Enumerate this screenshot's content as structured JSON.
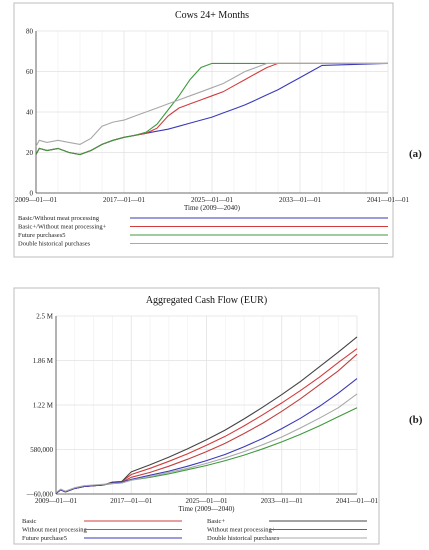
{
  "chart_data": [
    {
      "type": "line",
      "panel_label": "(a)",
      "title": "Cows 24+ Months",
      "xlabel": "Time (2009—2040)",
      "ylabel": "",
      "xlim": [
        2009,
        2041
      ],
      "ylim": [
        0,
        80
      ],
      "x_ticks": [
        "2009—01—01",
        "2017—01—01",
        "2025—01—01",
        "2033—01—01",
        "2041—01—01"
      ],
      "y_ticks": [
        "0",
        "20",
        "40",
        "60",
        "80"
      ],
      "grid": true,
      "legend_position": "bottom",
      "series": [
        {
          "name": "Basic/Without meat processing",
          "color": "#3a3ab8",
          "x": [
            2009,
            2009.3,
            2010,
            2011,
            2012,
            2013,
            2014,
            2015,
            2016,
            2017,
            2018,
            2019,
            2020,
            2021,
            2022,
            2023,
            2024,
            2025,
            2026,
            2027,
            2028,
            2029,
            2030,
            2031,
            2032,
            2033,
            2034,
            2035,
            2041
          ],
          "y": [
            19,
            22,
            21,
            22,
            20,
            19,
            21,
            24,
            26,
            27.5,
            28.5,
            29.5,
            30.5,
            31.5,
            33,
            34.5,
            36,
            37.5,
            39.5,
            41.5,
            43.5,
            46,
            48.5,
            51,
            54,
            57,
            60,
            63,
            64
          ]
        },
        {
          "name": "Basic+/Without meat processing+",
          "color": "#d23c3c",
          "x": [
            2009,
            2009.3,
            2010,
            2011,
            2012,
            2013,
            2014,
            2015,
            2016,
            2017,
            2018,
            2019,
            2020,
            2021,
            2021.5,
            2022,
            2023,
            2024,
            2025,
            2026,
            2027,
            2028,
            2029,
            2030,
            2031,
            2041
          ],
          "y": [
            19,
            22,
            21,
            22,
            20,
            19,
            21,
            24,
            26,
            27.5,
            28.5,
            29.5,
            32,
            38,
            40,
            42,
            44,
            46,
            48,
            50,
            53,
            56,
            59,
            62,
            64,
            64
          ]
        },
        {
          "name": "Future purchases5",
          "color": "#3d9a3d",
          "x": [
            2009,
            2009.3,
            2010,
            2011,
            2012,
            2013,
            2014,
            2015,
            2016,
            2017,
            2018,
            2019,
            2020,
            2021,
            2022,
            2023,
            2024,
            2025,
            2026,
            2041
          ],
          "y": [
            19,
            22,
            21,
            22,
            20,
            19,
            21,
            24,
            26,
            27.5,
            28.5,
            30,
            34,
            41,
            48,
            56,
            62,
            64,
            64,
            64
          ]
        },
        {
          "name": "Double historical purchases",
          "color": "#a8a8a8",
          "x": [
            2009,
            2009.3,
            2010,
            2011,
            2012,
            2013,
            2014,
            2015,
            2016,
            2017,
            2018,
            2019,
            2020,
            2021,
            2022,
            2023,
            2024,
            2025,
            2026,
            2027,
            2028,
            2029,
            2030,
            2031,
            2041
          ],
          "y": [
            23,
            26,
            25,
            26,
            25,
            24,
            27,
            33,
            35,
            36,
            38,
            40,
            42,
            44,
            46,
            48,
            50,
            52,
            54,
            57,
            60,
            62,
            64,
            64,
            64
          ]
        }
      ]
    },
    {
      "type": "line",
      "panel_label": "(b)",
      "title": "Aggregated Cash Flow (EUR)",
      "xlabel": "Time (2009—2040)",
      "ylabel": "",
      "xlim": [
        2009,
        2041
      ],
      "ylim": [
        -60000,
        2500000
      ],
      "x_ticks": [
        "2009—01—01",
        "2017—01—01",
        "2025—01—01",
        "2033—01—01",
        "2041—01—01"
      ],
      "y_ticks": [
        "—60,000",
        "580,000",
        "1.22 M",
        "1.86 M",
        "2.5 M"
      ],
      "grid": true,
      "legend_position": "bottom",
      "series": [
        {
          "name": "Basic",
          "color": "#d23c3c",
          "x": [
            2009,
            2009.5,
            2010,
            2011,
            2012,
            2013,
            2014,
            2015,
            2016,
            2017,
            2019,
            2021,
            2023,
            2025,
            2027,
            2029,
            2031,
            2033,
            2035,
            2037,
            2039,
            2041
          ],
          "y": [
            -50000,
            0,
            -30000,
            20000,
            50000,
            60000,
            70000,
            110000,
            120000,
            220000,
            310000,
            410000,
            520000,
            640000,
            770000,
            920000,
            1080000,
            1250000,
            1430000,
            1620000,
            1830000,
            2030000
          ]
        },
        {
          "name": "Basic+",
          "color": "#444444",
          "x": [
            2009,
            2009.5,
            2010,
            2011,
            2012,
            2013,
            2014,
            2015,
            2016,
            2017,
            2019,
            2021,
            2023,
            2025,
            2027,
            2029,
            2031,
            2033,
            2035,
            2037,
            2039,
            2041
          ],
          "y": [
            -50000,
            0,
            -30000,
            20000,
            50000,
            60000,
            70000,
            110000,
            120000,
            260000,
            360000,
            470000,
            590000,
            720000,
            860000,
            1020000,
            1190000,
            1370000,
            1560000,
            1770000,
            1980000,
            2200000
          ]
        },
        {
          "name": "Without meat processing",
          "color": "#3d9a3d",
          "x": [
            2009,
            2009.5,
            2010,
            2011,
            2012,
            2013,
            2014,
            2015,
            2016,
            2017,
            2019,
            2021,
            2023,
            2025,
            2027,
            2029,
            2031,
            2033,
            2035,
            2037,
            2039,
            2041
          ],
          "y": [
            -50000,
            0,
            -30000,
            20000,
            50000,
            60000,
            70000,
            90000,
            100000,
            140000,
            180000,
            230000,
            290000,
            350000,
            420000,
            500000,
            590000,
            690000,
            800000,
            920000,
            1050000,
            1180000
          ]
        },
        {
          "name": "Without meat processing+",
          "color": "#c04040",
          "x": [
            2009,
            2009.5,
            2010,
            2011,
            2012,
            2013,
            2014,
            2015,
            2016,
            2017,
            2019,
            2021,
            2023,
            2025,
            2027,
            2029,
            2031,
            2033,
            2035,
            2037,
            2039,
            2041
          ],
          "y": [
            -50000,
            0,
            -30000,
            20000,
            50000,
            60000,
            70000,
            100000,
            110000,
            180000,
            250000,
            340000,
            440000,
            550000,
            670000,
            810000,
            960000,
            1130000,
            1310000,
            1510000,
            1710000,
            1950000
          ]
        },
        {
          "name": "Future purchase5",
          "color": "#3a3ab8",
          "x": [
            2009,
            2009.5,
            2010,
            2011,
            2012,
            2013,
            2014,
            2015,
            2016,
            2017,
            2019,
            2021,
            2023,
            2025,
            2027,
            2029,
            2031,
            2033,
            2035,
            2037,
            2039,
            2041
          ],
          "y": [
            -50000,
            0,
            -30000,
            20000,
            50000,
            60000,
            70000,
            100000,
            110000,
            150000,
            210000,
            270000,
            340000,
            420000,
            510000,
            620000,
            740000,
            880000,
            1030000,
            1200000,
            1390000,
            1600000
          ]
        },
        {
          "name": "Double historical purchases",
          "color": "#a8a8a8",
          "x": [
            2009,
            2009.5,
            2010,
            2011,
            2012,
            2013,
            2014,
            2015,
            2016,
            2017,
            2019,
            2021,
            2023,
            2025,
            2027,
            2029,
            2031,
            2033,
            2035,
            2037,
            2039,
            2041
          ],
          "y": [
            -40000,
            10000,
            -20000,
            30000,
            60000,
            70000,
            80000,
            90000,
            100000,
            140000,
            190000,
            250000,
            310000,
            380000,
            460000,
            550000,
            650000,
            760000,
            890000,
            1030000,
            1180000,
            1380000
          ]
        }
      ]
    }
  ]
}
